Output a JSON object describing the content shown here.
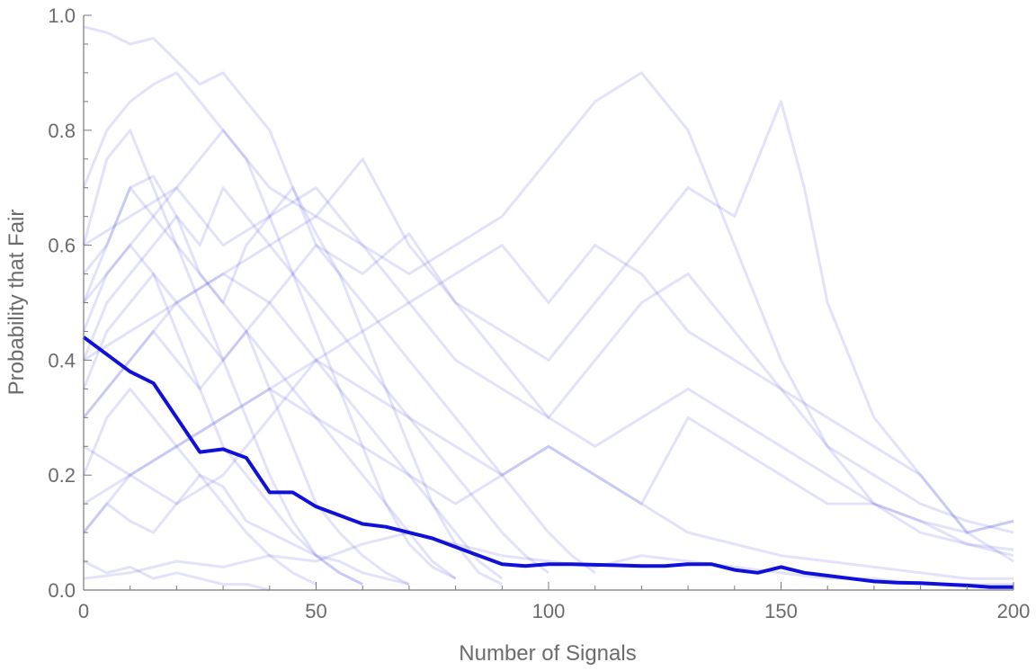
{
  "chart_data": {
    "type": "line",
    "title": "",
    "xlabel": "Number of Signals",
    "ylabel": "Probability that Fair",
    "xlim": [
      0,
      200
    ],
    "ylim": [
      0,
      1
    ],
    "x_ticks": [
      0,
      50,
      100,
      150,
      200
    ],
    "x_tick_labels": [
      "0",
      "50",
      "100",
      "150",
      "200"
    ],
    "y_ticks": [
      0,
      0.2,
      0.4,
      0.6,
      0.8,
      1.0
    ],
    "y_tick_labels": [
      "0.0",
      "0.2",
      "0.4",
      "0.6",
      "0.8",
      "1.0"
    ],
    "grid": false,
    "legend": "none",
    "colors": {
      "mean": "#1010d8",
      "simulations": "#4a4ae0",
      "axis": "#7a7a7a",
      "text": "#6b6b6b"
    },
    "series": [
      {
        "role": "mean",
        "x": [
          0,
          5,
          10,
          15,
          20,
          25,
          30,
          35,
          40,
          45,
          50,
          55,
          60,
          65,
          70,
          75,
          80,
          85,
          90,
          95,
          100,
          105,
          110,
          115,
          120,
          125,
          130,
          135,
          140,
          145,
          150,
          155,
          160,
          165,
          170,
          175,
          180,
          185,
          190,
          195,
          200
        ],
        "y": [
          0.44,
          0.41,
          0.38,
          0.36,
          0.3,
          0.24,
          0.245,
          0.23,
          0.17,
          0.17,
          0.145,
          0.13,
          0.115,
          0.11,
          0.1,
          0.09,
          0.075,
          0.06,
          0.045,
          0.042,
          0.045,
          0.045,
          0.044,
          0.043,
          0.042,
          0.042,
          0.045,
          0.045,
          0.035,
          0.03,
          0.04,
          0.03,
          0.025,
          0.02,
          0.015,
          0.013,
          0.012,
          0.01,
          0.008,
          0.005,
          0.005
        ]
      },
      {
        "role": "simulation",
        "x": [
          0,
          5,
          10,
          15,
          20,
          25,
          30,
          35,
          40,
          45,
          50,
          55,
          60,
          65,
          70,
          75,
          80,
          85,
          90
        ],
        "y": [
          0.98,
          0.97,
          0.95,
          0.96,
          0.92,
          0.88,
          0.9,
          0.85,
          0.8,
          0.7,
          0.62,
          0.55,
          0.45,
          0.35,
          0.25,
          0.15,
          0.08,
          0.03,
          0.01
        ]
      },
      {
        "role": "simulation",
        "x": [
          0,
          5,
          10,
          15,
          20,
          25,
          30,
          35,
          40,
          45,
          50,
          55,
          60,
          65,
          70,
          75,
          80
        ],
        "y": [
          0.7,
          0.8,
          0.85,
          0.88,
          0.9,
          0.85,
          0.8,
          0.75,
          0.65,
          0.55,
          0.45,
          0.35,
          0.25,
          0.15,
          0.08,
          0.04,
          0.02
        ]
      },
      {
        "role": "simulation",
        "x": [
          0,
          10,
          20,
          30,
          40,
          50,
          60,
          70,
          80,
          90,
          100,
          110,
          120,
          130,
          140,
          150,
          160,
          170,
          180,
          190,
          200
        ],
        "y": [
          0.3,
          0.4,
          0.5,
          0.55,
          0.6,
          0.65,
          0.6,
          0.55,
          0.6,
          0.65,
          0.75,
          0.85,
          0.9,
          0.8,
          0.6,
          0.4,
          0.25,
          0.15,
          0.1,
          0.08,
          0.06
        ]
      },
      {
        "role": "simulation",
        "x": [
          0,
          10,
          20,
          30,
          40,
          50,
          60,
          70,
          80,
          90,
          100,
          110,
          120,
          130,
          140,
          150,
          155,
          160,
          170,
          180,
          190,
          200
        ],
        "y": [
          0.4,
          0.45,
          0.5,
          0.55,
          0.5,
          0.6,
          0.55,
          0.62,
          0.5,
          0.45,
          0.4,
          0.5,
          0.6,
          0.7,
          0.65,
          0.85,
          0.7,
          0.5,
          0.3,
          0.2,
          0.1,
          0.12
        ]
      },
      {
        "role": "simulation",
        "x": [
          0,
          10,
          20,
          30,
          40,
          50,
          60,
          70,
          80,
          90,
          100,
          110,
          120,
          130,
          140,
          150,
          160,
          170,
          180,
          190,
          200
        ],
        "y": [
          0.5,
          0.6,
          0.7,
          0.8,
          0.7,
          0.65,
          0.75,
          0.6,
          0.5,
          0.4,
          0.3,
          0.4,
          0.5,
          0.55,
          0.45,
          0.35,
          0.25,
          0.2,
          0.15,
          0.12,
          0.1
        ]
      },
      {
        "role": "simulation",
        "x": [
          0,
          10,
          20,
          30,
          40,
          50,
          60,
          70,
          80,
          90,
          100,
          110,
          120,
          130,
          140,
          150,
          160,
          170,
          180,
          190,
          200
        ],
        "y": [
          0.6,
          0.65,
          0.7,
          0.6,
          0.65,
          0.7,
          0.6,
          0.5,
          0.55,
          0.6,
          0.5,
          0.6,
          0.55,
          0.45,
          0.4,
          0.35,
          0.3,
          0.25,
          0.2,
          0.1,
          0.05
        ]
      },
      {
        "role": "simulation",
        "x": [
          0,
          10,
          20,
          30,
          40,
          50,
          60,
          70,
          80,
          90,
          100,
          110,
          120,
          130,
          140,
          150,
          160,
          170,
          180,
          190,
          200
        ],
        "y": [
          0.1,
          0.2,
          0.25,
          0.3,
          0.35,
          0.4,
          0.35,
          0.3,
          0.25,
          0.2,
          0.25,
          0.2,
          0.15,
          0.3,
          0.25,
          0.2,
          0.15,
          0.15,
          0.12,
          0.08,
          0.07
        ]
      },
      {
        "role": "simulation",
        "x": [
          0,
          5,
          10,
          15,
          20,
          25,
          30,
          35,
          40,
          45,
          50,
          55,
          60
        ],
        "y": [
          0.6,
          0.75,
          0.8,
          0.7,
          0.6,
          0.5,
          0.4,
          0.3,
          0.2,
          0.12,
          0.06,
          0.03,
          0.01
        ]
      },
      {
        "role": "simulation",
        "x": [
          0,
          5,
          10,
          15,
          20,
          25,
          30,
          35,
          40,
          45,
          50,
          55,
          60,
          65,
          70
        ],
        "y": [
          0.5,
          0.6,
          0.7,
          0.72,
          0.65,
          0.55,
          0.5,
          0.45,
          0.35,
          0.25,
          0.15,
          0.1,
          0.06,
          0.03,
          0.01
        ]
      },
      {
        "role": "simulation",
        "x": [
          0,
          5,
          10,
          15,
          20,
          25,
          30,
          35,
          40,
          45,
          50,
          55,
          60,
          65,
          70,
          75,
          80,
          85,
          90,
          95,
          100
        ],
        "y": [
          0.4,
          0.5,
          0.55,
          0.6,
          0.65,
          0.6,
          0.7,
          0.65,
          0.6,
          0.55,
          0.5,
          0.45,
          0.4,
          0.35,
          0.3,
          0.25,
          0.2,
          0.15,
          0.1,
          0.06,
          0.03
        ]
      },
      {
        "role": "simulation",
        "x": [
          0,
          5,
          10,
          15,
          20,
          25,
          30,
          35,
          40,
          45,
          50
        ],
        "y": [
          0.2,
          0.3,
          0.35,
          0.3,
          0.25,
          0.2,
          0.15,
          0.1,
          0.06,
          0.03,
          0.01
        ]
      },
      {
        "role": "simulation",
        "x": [
          0,
          5,
          10,
          15,
          20,
          25,
          30,
          35,
          40,
          45,
          50,
          55,
          60,
          65,
          70,
          75,
          80
        ],
        "y": [
          0.35,
          0.45,
          0.5,
          0.55,
          0.5,
          0.45,
          0.4,
          0.45,
          0.4,
          0.35,
          0.3,
          0.25,
          0.2,
          0.15,
          0.1,
          0.05,
          0.02
        ]
      },
      {
        "role": "simulation",
        "x": [
          0,
          5,
          10,
          15,
          20,
          25,
          30,
          35,
          40
        ],
        "y": [
          0.05,
          0.03,
          0.04,
          0.02,
          0.03,
          0.02,
          0.01,
          0.01,
          0.0
        ]
      },
      {
        "role": "simulation",
        "x": [
          0,
          10,
          20,
          30,
          40,
          50,
          60,
          70,
          80,
          90,
          100,
          110,
          120,
          130,
          140,
          150,
          160,
          170,
          180,
          190,
          200
        ],
        "y": [
          0.02,
          0.03,
          0.05,
          0.04,
          0.06,
          0.05,
          0.08,
          0.1,
          0.08,
          0.06,
          0.05,
          0.04,
          0.06,
          0.05,
          0.04,
          0.03,
          0.02,
          0.02,
          0.01,
          0.01,
          0.01
        ]
      },
      {
        "role": "simulation",
        "x": [
          0,
          5,
          10,
          15,
          20,
          25,
          30,
          35,
          40,
          45,
          50,
          55,
          60,
          65,
          70
        ],
        "y": [
          0.1,
          0.15,
          0.12,
          0.1,
          0.15,
          0.2,
          0.18,
          0.12,
          0.1,
          0.08,
          0.06,
          0.05,
          0.03,
          0.02,
          0.01
        ]
      },
      {
        "role": "simulation",
        "x": [
          0,
          5,
          10,
          15,
          20,
          25,
          30,
          35,
          40,
          45,
          50,
          55,
          60,
          65,
          70,
          75,
          80,
          85,
          90,
          95,
          100,
          105,
          110
        ],
        "y": [
          0.55,
          0.6,
          0.7,
          0.65,
          0.6,
          0.55,
          0.5,
          0.6,
          0.65,
          0.7,
          0.6,
          0.55,
          0.5,
          0.45,
          0.4,
          0.35,
          0.3,
          0.25,
          0.2,
          0.15,
          0.1,
          0.06,
          0.03
        ]
      },
      {
        "role": "simulation",
        "x": [
          0,
          10,
          20,
          30,
          40,
          50,
          60,
          70,
          80,
          90,
          100,
          110,
          120,
          130,
          140,
          150,
          160,
          170,
          180,
          190,
          200
        ],
        "y": [
          0.25,
          0.2,
          0.15,
          0.2,
          0.3,
          0.4,
          0.45,
          0.5,
          0.4,
          0.35,
          0.3,
          0.25,
          0.3,
          0.35,
          0.3,
          0.25,
          0.2,
          0.15,
          0.12,
          0.1,
          0.12
        ]
      },
      {
        "role": "simulation",
        "x": [
          0,
          5,
          10,
          15,
          20,
          25,
          30,
          35,
          40,
          45,
          50,
          55,
          60
        ],
        "y": [
          0.45,
          0.55,
          0.6,
          0.55,
          0.45,
          0.35,
          0.25,
          0.2,
          0.15,
          0.1,
          0.06,
          0.03,
          0.01
        ]
      },
      {
        "role": "simulation",
        "x": [
          0,
          5,
          10,
          15,
          20,
          25,
          30,
          35,
          40,
          45,
          50,
          55,
          60,
          65,
          70,
          75,
          80,
          85,
          90
        ],
        "y": [
          0.3,
          0.35,
          0.4,
          0.45,
          0.4,
          0.35,
          0.4,
          0.45,
          0.5,
          0.45,
          0.4,
          0.35,
          0.3,
          0.25,
          0.2,
          0.15,
          0.1,
          0.05,
          0.02
        ]
      },
      {
        "role": "simulation",
        "x": [
          0,
          10,
          20,
          30,
          40,
          50,
          60,
          70,
          80,
          90,
          100,
          110,
          120,
          130,
          140,
          150,
          160,
          170,
          180,
          190,
          200
        ],
        "y": [
          0.15,
          0.2,
          0.25,
          0.3,
          0.35,
          0.3,
          0.25,
          0.2,
          0.15,
          0.2,
          0.25,
          0.2,
          0.15,
          0.1,
          0.08,
          0.06,
          0.05,
          0.04,
          0.03,
          0.02,
          0.02
        ]
      }
    ]
  }
}
